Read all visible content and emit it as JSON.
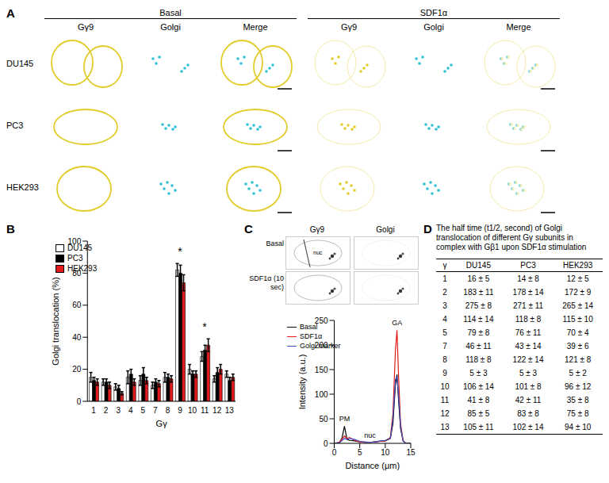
{
  "panel_a": {
    "label": "A",
    "conditions": [
      "Basal",
      "SDF1α"
    ],
    "channels": [
      "Gγ9",
      "Golgi",
      "Merge"
    ],
    "cell_lines": [
      "DU145",
      "PC3",
      "HEK293"
    ]
  },
  "chart_data": [
    {
      "label": "B",
      "type": "bar",
      "x_label": "Gγ",
      "y_label": "Golgi translocation (%)",
      "categories": [
        "1",
        "2",
        "3",
        "4",
        "5",
        "7",
        "8",
        "9",
        "10",
        "11",
        "12",
        "13"
      ],
      "series": [
        {
          "name": "DU145",
          "color": "#ffffff",
          "values": [
            15,
            12,
            9,
            15,
            13,
            10,
            15,
            82,
            20,
            28,
            14,
            17
          ],
          "errors": [
            3,
            2,
            2,
            4,
            3,
            2,
            3,
            4,
            3,
            3,
            2,
            2
          ]
        },
        {
          "name": "PC3",
          "color": "#000000",
          "values": [
            13,
            12,
            8,
            17,
            17,
            12,
            15,
            80,
            17,
            32,
            18,
            13
          ],
          "errors": [
            2,
            2,
            2,
            3,
            4,
            2,
            2,
            5,
            2,
            3,
            3,
            2
          ]
        },
        {
          "name": "HEK293",
          "color": "#e31a1c",
          "values": [
            12,
            10,
            5,
            12,
            13,
            11,
            14,
            74,
            17,
            35,
            20,
            15
          ],
          "errors": [
            2,
            2,
            1,
            2,
            2,
            2,
            2,
            5,
            2,
            4,
            3,
            2
          ]
        }
      ],
      "ylim": [
        0,
        100
      ],
      "yticks": [
        0,
        20,
        40,
        60,
        80,
        100
      ],
      "legend": "upper left",
      "grid": false,
      "annotations": [
        {
          "text": "*",
          "category": "9"
        },
        {
          "text": "*",
          "category": "11"
        }
      ]
    },
    {
      "label": "C",
      "type": "line",
      "x_label": "Distance (μm)",
      "y_label": "Intensity (a.u.)",
      "x": [
        0,
        1,
        1.5,
        2,
        2.5,
        3,
        4,
        5,
        6,
        7,
        8,
        9,
        10,
        11,
        11.5,
        12,
        12.3,
        12.6,
        13,
        13.5,
        14,
        15
      ],
      "series": [
        {
          "name": "Basal",
          "color": "#000000",
          "values": [
            0,
            2,
            10,
            35,
            8,
            6,
            5,
            3,
            2,
            2,
            3,
            4,
            5,
            10,
            40,
            120,
            140,
            90,
            30,
            5,
            0,
            0
          ]
        },
        {
          "name": "SDF1α",
          "color": "#e31a1c",
          "values": [
            0,
            2,
            8,
            15,
            10,
            12,
            6,
            3,
            2,
            2,
            3,
            4,
            5,
            12,
            60,
            190,
            230,
            140,
            40,
            6,
            0,
            0
          ]
        },
        {
          "name": "Golgi marker",
          "color": "#3b4cc0",
          "values": [
            0,
            1,
            5,
            10,
            8,
            10,
            8,
            4,
            3,
            2,
            3,
            5,
            6,
            10,
            50,
            130,
            135,
            100,
            35,
            5,
            0,
            0
          ]
        }
      ],
      "xlim": [
        0,
        15
      ],
      "xticks": [
        0,
        5,
        10,
        15
      ],
      "ylim": [
        0,
        250
      ],
      "yticks": [
        0,
        50,
        100,
        150,
        200,
        250
      ],
      "legend": "upper left",
      "grid": false,
      "annotations": [
        {
          "text": "PM",
          "x": 2
        },
        {
          "text": "nuc",
          "x": 7
        },
        {
          "text": "GA",
          "x": 12.3
        }
      ]
    }
  ],
  "panel_c_images": {
    "conditions": [
      "Basal",
      "SDF1α (10 sec)"
    ],
    "channels": [
      "Gγ9",
      "Golgi"
    ],
    "image_annotation": "nuc"
  },
  "table": {
    "label": "D",
    "title": "The half time (t1/2, second) of Golgi translocation of different Gγ subunits in complex with Gβ1 upon SDF1α stimulation",
    "columns": [
      "γ",
      "DU145",
      "PC3",
      "HEK293"
    ],
    "rows": [
      [
        "1",
        "16 ± 5",
        "14 ± 8",
        "12 ± 5"
      ],
      [
        "2",
        "183 ± 11",
        "178 ± 14",
        "172 ± 9"
      ],
      [
        "3",
        "275 ± 8",
        "271 ± 11",
        "265 ± 14"
      ],
      [
        "4",
        "114 ± 14",
        "118 ± 8",
        "115 ± 10"
      ],
      [
        "5",
        "79 ± 8",
        "76 ± 11",
        "70 ± 4"
      ],
      [
        "7",
        "46 ± 11",
        "43 ± 14",
        "39 ± 6"
      ],
      [
        "8",
        "118 ± 8",
        "122 ± 14",
        "121 ± 8"
      ],
      [
        "9",
        "5 ± 3",
        "5 ± 3",
        "5 ± 2"
      ],
      [
        "10",
        "106 ± 14",
        "101 ± 8",
        "96 ± 12"
      ],
      [
        "11",
        "41 ± 8",
        "42 ± 11",
        "35 ± 8"
      ],
      [
        "12",
        "85 ± 5",
        "83 ± 8",
        "75 ± 8"
      ],
      [
        "13",
        "105 ± 11",
        "102 ± 14",
        "94 ± 10"
      ]
    ]
  }
}
